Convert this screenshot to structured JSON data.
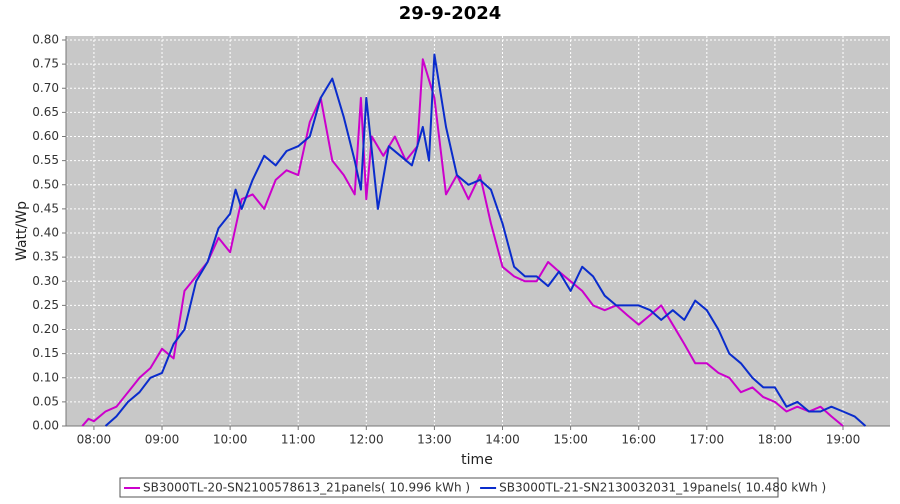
{
  "chart_data": {
    "type": "line",
    "title": "29-9-2024",
    "xlabel": "time",
    "ylabel": "Watt/Wp",
    "xlim": [
      7.59,
      19.69
    ],
    "ylim": [
      0,
      0.8
    ],
    "grid": true,
    "legend": "bottom",
    "xticks": [
      {
        "value": 8,
        "label": "08:00"
      },
      {
        "value": 9,
        "label": "09:00"
      },
      {
        "value": 10,
        "label": "10:00"
      },
      {
        "value": 11,
        "label": "11:00"
      },
      {
        "value": 12,
        "label": "12:00"
      },
      {
        "value": 13,
        "label": "13:00"
      },
      {
        "value": 14,
        "label": "14:00"
      },
      {
        "value": 15,
        "label": "15:00"
      },
      {
        "value": 16,
        "label": "16:00"
      },
      {
        "value": 17,
        "label": "17:00"
      },
      {
        "value": 18,
        "label": "18:00"
      },
      {
        "value": 19,
        "label": "19:00"
      }
    ],
    "yticks": [
      {
        "value": 0,
        "label": "0.00"
      },
      {
        "value": 0.05,
        "label": "0.05"
      },
      {
        "value": 0.1,
        "label": "0.10"
      },
      {
        "value": 0.15,
        "label": "0.15"
      },
      {
        "value": 0.2,
        "label": "0.20"
      },
      {
        "value": 0.25,
        "label": "0.25"
      },
      {
        "value": 0.3,
        "label": "0.30"
      },
      {
        "value": 0.35,
        "label": "0.35"
      },
      {
        "value": 0.4,
        "label": "0.40"
      },
      {
        "value": 0.45,
        "label": "0.45"
      },
      {
        "value": 0.5,
        "label": "0.50"
      },
      {
        "value": 0.55,
        "label": "0.55"
      },
      {
        "value": 0.6,
        "label": "0.60"
      },
      {
        "value": 0.65,
        "label": "0.65"
      },
      {
        "value": 0.7,
        "label": "0.70"
      },
      {
        "value": 0.75,
        "label": "0.75"
      },
      {
        "value": 0.8,
        "label": "0.80"
      }
    ],
    "series": [
      {
        "name": "SB3000TL-20-SN2100578613_21panels( 10.996 kWh )",
        "color": "#cc00cc",
        "x": [
          7.83,
          7.92,
          8.0,
          8.17,
          8.33,
          8.5,
          8.67,
          8.83,
          9.0,
          9.17,
          9.33,
          9.5,
          9.67,
          9.83,
          10.0,
          10.17,
          10.33,
          10.5,
          10.67,
          10.83,
          11.0,
          11.17,
          11.33,
          11.5,
          11.67,
          11.83,
          11.92,
          12.0,
          12.08,
          12.25,
          12.42,
          12.58,
          12.75,
          12.83,
          13.0,
          13.17,
          13.33,
          13.5,
          13.67,
          13.83,
          14.0,
          14.17,
          14.33,
          14.5,
          14.67,
          14.83,
          15.0,
          15.17,
          15.33,
          15.5,
          15.67,
          15.83,
          16.0,
          16.17,
          16.33,
          16.5,
          16.67,
          16.83,
          17.0,
          17.17,
          17.33,
          17.5,
          17.67,
          17.83,
          18.0,
          18.17,
          18.33,
          18.5,
          18.67,
          18.83,
          19.0
        ],
        "values": [
          0.0,
          0.015,
          0.01,
          0.03,
          0.04,
          0.07,
          0.1,
          0.12,
          0.16,
          0.14,
          0.28,
          0.31,
          0.34,
          0.39,
          0.36,
          0.47,
          0.48,
          0.45,
          0.51,
          0.53,
          0.52,
          0.63,
          0.68,
          0.55,
          0.52,
          0.48,
          0.68,
          0.47,
          0.6,
          0.56,
          0.6,
          0.55,
          0.58,
          0.76,
          0.68,
          0.48,
          0.52,
          0.47,
          0.52,
          0.42,
          0.33,
          0.31,
          0.3,
          0.3,
          0.34,
          0.32,
          0.3,
          0.28,
          0.25,
          0.24,
          0.25,
          0.23,
          0.21,
          0.23,
          0.25,
          0.21,
          0.17,
          0.13,
          0.13,
          0.11,
          0.1,
          0.07,
          0.08,
          0.06,
          0.05,
          0.03,
          0.04,
          0.03,
          0.04,
          0.02,
          0.0
        ]
      },
      {
        "name": "SB3000TL-21-SN2130032031_19panels( 10.480 kWh )",
        "color": "#0a2ccc",
        "x": [
          8.17,
          8.33,
          8.5,
          8.67,
          8.83,
          9.0,
          9.17,
          9.33,
          9.5,
          9.67,
          9.83,
          10.0,
          10.08,
          10.17,
          10.33,
          10.5,
          10.67,
          10.83,
          11.0,
          11.17,
          11.33,
          11.5,
          11.67,
          11.83,
          11.92,
          12.0,
          12.17,
          12.33,
          12.5,
          12.67,
          12.83,
          12.92,
          13.0,
          13.17,
          13.33,
          13.5,
          13.67,
          13.83,
          14.0,
          14.17,
          14.33,
          14.5,
          14.67,
          14.83,
          15.0,
          15.17,
          15.33,
          15.5,
          15.67,
          15.83,
          16.0,
          16.17,
          16.33,
          16.5,
          16.67,
          16.83,
          17.0,
          17.17,
          17.33,
          17.5,
          17.67,
          17.83,
          18.0,
          18.17,
          18.33,
          18.5,
          18.67,
          18.83,
          19.0,
          19.17,
          19.33
        ],
        "values": [
          0.0,
          0.02,
          0.05,
          0.07,
          0.1,
          0.11,
          0.17,
          0.2,
          0.3,
          0.34,
          0.41,
          0.44,
          0.49,
          0.45,
          0.51,
          0.56,
          0.54,
          0.57,
          0.58,
          0.6,
          0.68,
          0.72,
          0.64,
          0.55,
          0.49,
          0.68,
          0.45,
          0.58,
          0.56,
          0.54,
          0.62,
          0.55,
          0.77,
          0.62,
          0.52,
          0.5,
          0.51,
          0.49,
          0.42,
          0.33,
          0.31,
          0.31,
          0.29,
          0.32,
          0.28,
          0.33,
          0.31,
          0.27,
          0.25,
          0.25,
          0.25,
          0.24,
          0.22,
          0.24,
          0.22,
          0.26,
          0.24,
          0.2,
          0.15,
          0.13,
          0.1,
          0.08,
          0.08,
          0.04,
          0.05,
          0.03,
          0.03,
          0.04,
          0.03,
          0.02,
          0.0
        ]
      }
    ]
  }
}
